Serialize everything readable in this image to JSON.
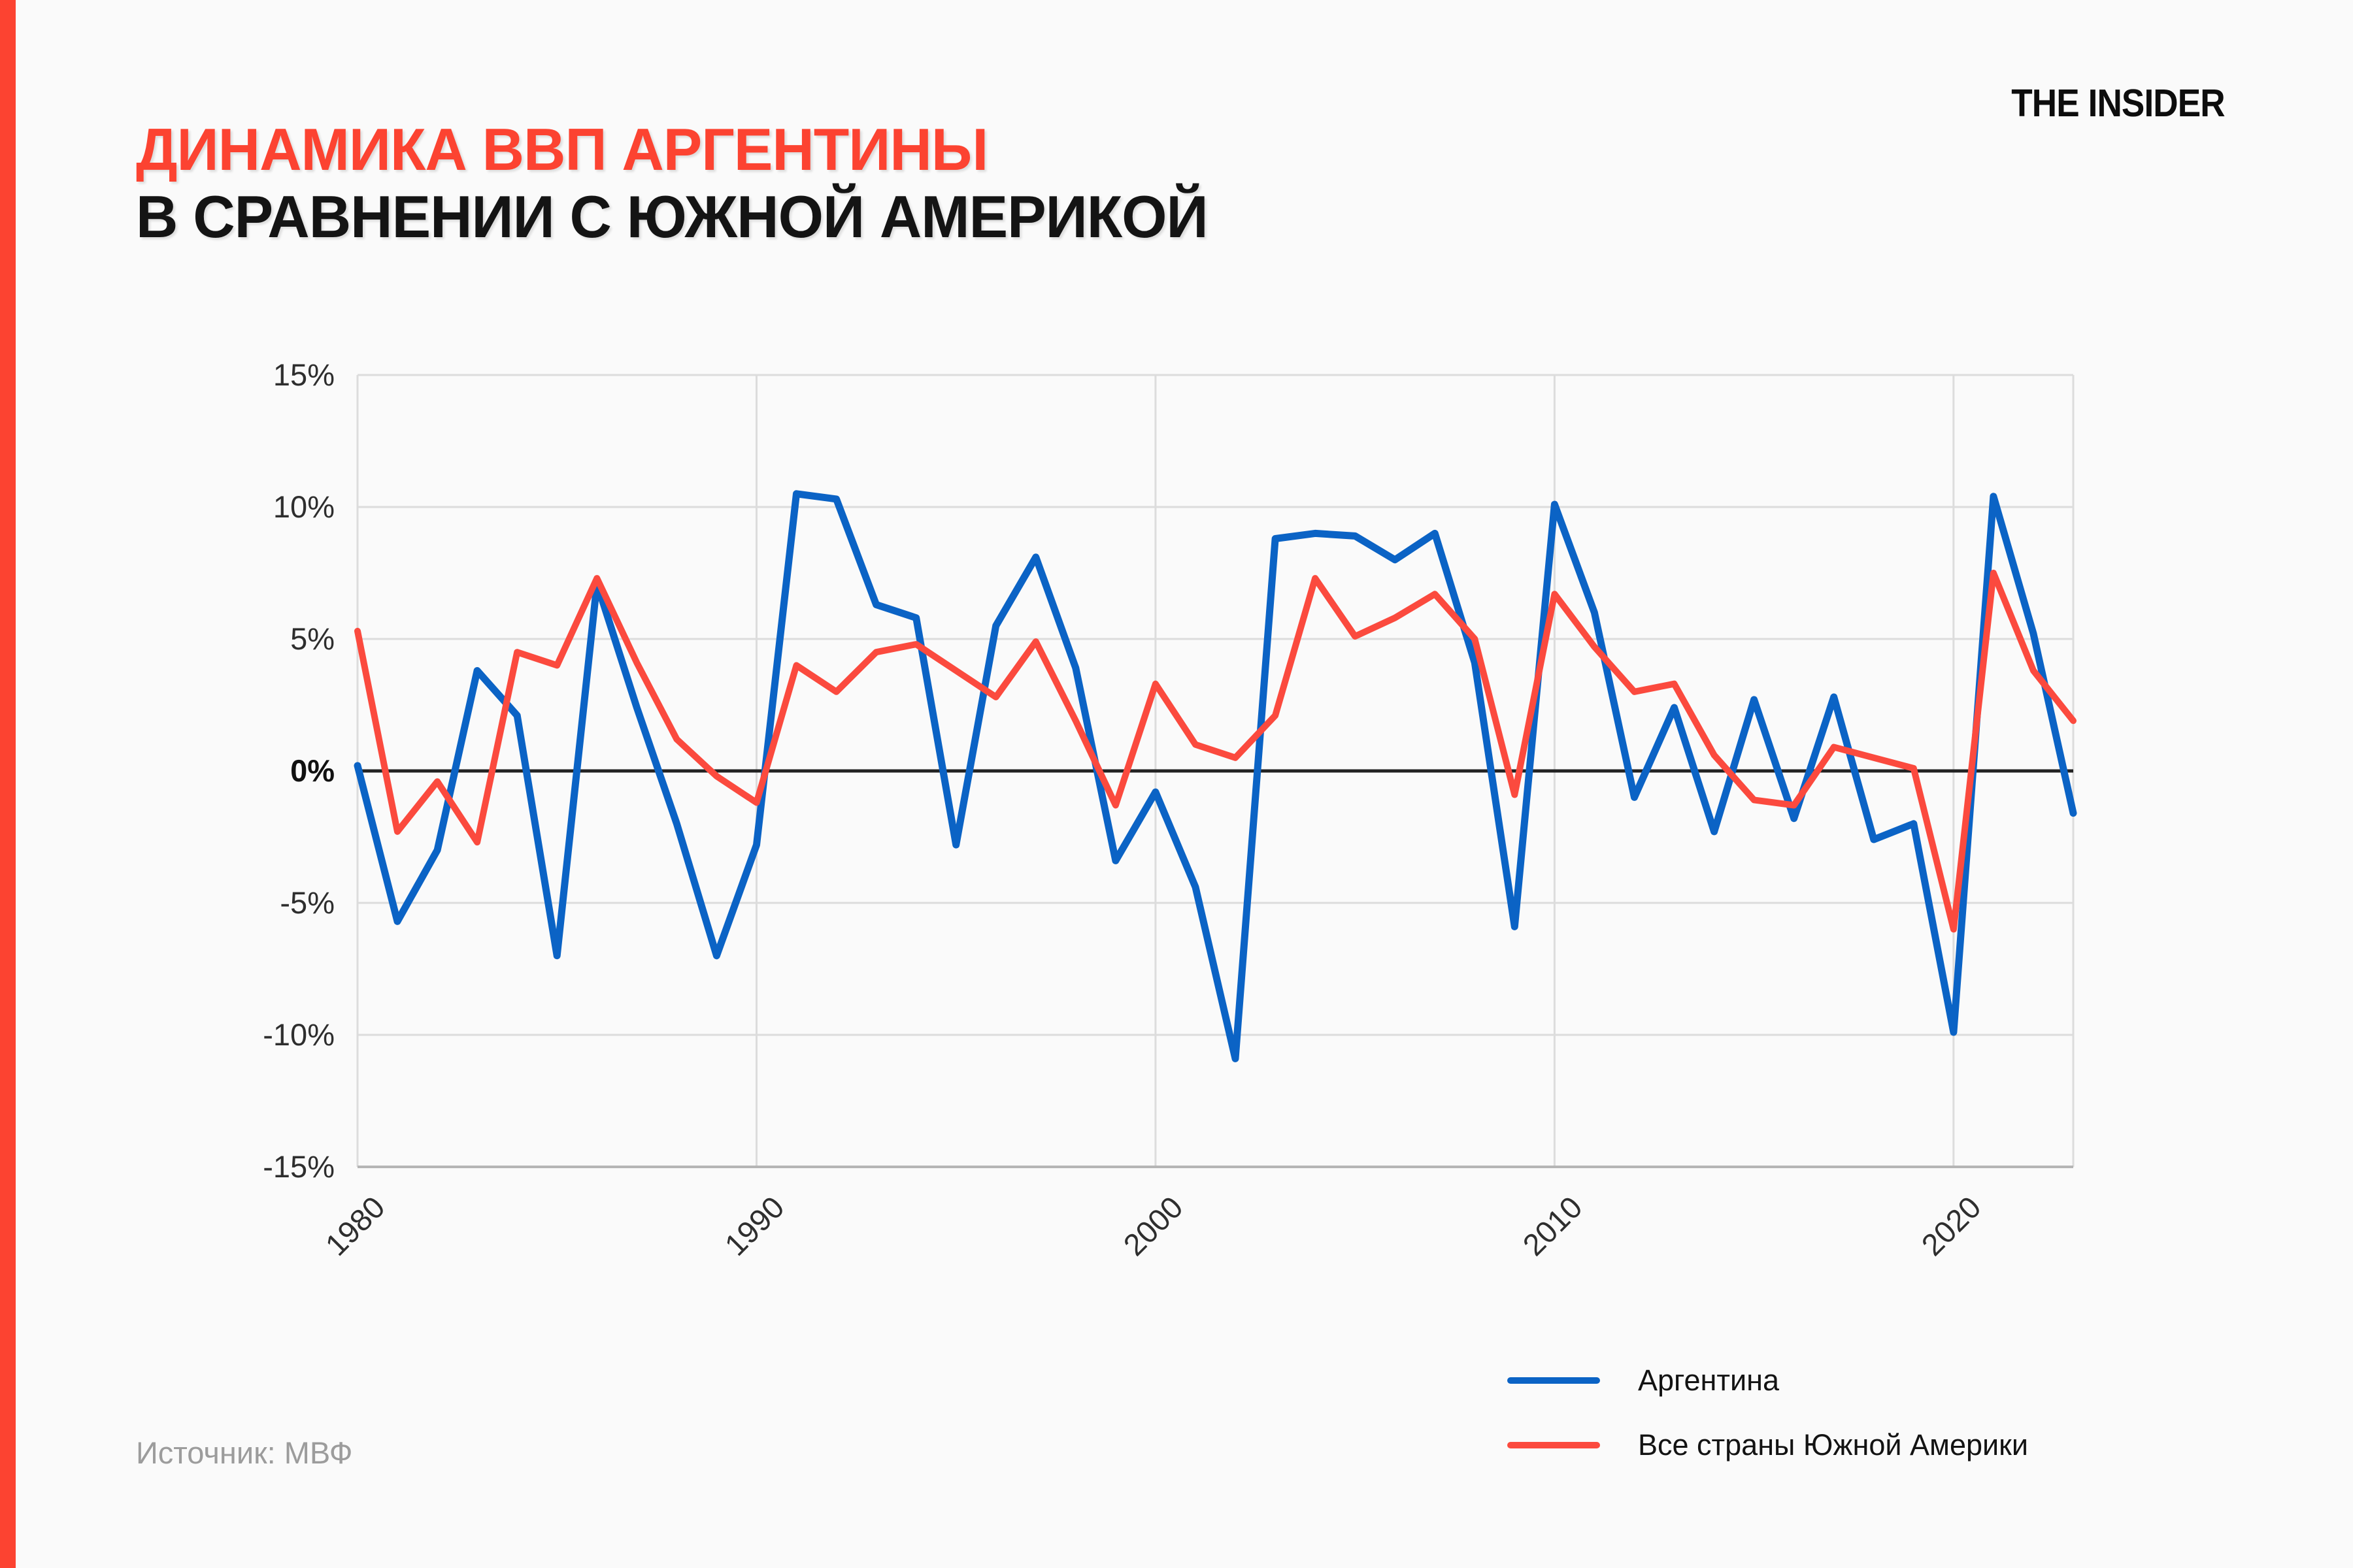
{
  "page": {
    "background": "#fafafa",
    "accent_color": "#fc4331"
  },
  "logo": {
    "text": "THE INSIDER"
  },
  "header": {
    "title_line1": "ДИНАМИКА ВВП АРГЕНТИНЫ",
    "title_line2": "В СРАВНЕНИИ С ЮЖНОЙ АМЕРИКОЙ",
    "title_line1_color": "#fc4331",
    "title_line2_color": "#141414"
  },
  "source": {
    "label": "Источник: МВФ"
  },
  "chart_data": {
    "type": "line",
    "title": "Динамика ВВП Аргентины в сравнении с Южной Америкой",
    "xlabel": "",
    "ylabel": "",
    "ylim": [
      -15,
      15
    ],
    "yticks": [
      15,
      10,
      5,
      0,
      -5,
      -10,
      -15
    ],
    "ytick_suffix": "%",
    "xticks": [
      1980,
      1990,
      2000,
      2010,
      2020
    ],
    "grid": true,
    "zero_line": true,
    "legend_position": "bottom-right",
    "x": [
      1980,
      1981,
      1982,
      1983,
      1984,
      1985,
      1986,
      1987,
      1988,
      1989,
      1990,
      1991,
      1992,
      1993,
      1994,
      1995,
      1996,
      1997,
      1998,
      1999,
      2000,
      2001,
      2002,
      2003,
      2004,
      2005,
      2006,
      2007,
      2008,
      2009,
      2010,
      2011,
      2012,
      2013,
      2014,
      2015,
      2016,
      2017,
      2018,
      2019,
      2020,
      2021,
      2022,
      2023
    ],
    "series": [
      {
        "name": "Аргентина",
        "color": "#0b63c5",
        "values": [
          0.2,
          -5.7,
          -3.0,
          3.8,
          2.1,
          -7.0,
          7.1,
          2.4,
          -2.0,
          -7.0,
          -2.8,
          10.5,
          10.3,
          6.3,
          5.8,
          -2.8,
          5.5,
          8.1,
          3.9,
          -3.4,
          -0.8,
          -4.4,
          -10.9,
          8.8,
          9.0,
          8.9,
          8.0,
          9.0,
          4.1,
          -5.9,
          10.1,
          6.0,
          -1.0,
          2.4,
          -2.3,
          2.7,
          -1.8,
          2.8,
          -2.6,
          -2.0,
          -9.9,
          10.4,
          5.2,
          -1.6
        ]
      },
      {
        "name": "Все страны Южной Америки",
        "color": "#fb4a3e",
        "values": [
          5.3,
          -2.3,
          -0.4,
          -2.7,
          4.5,
          4.0,
          7.3,
          4.1,
          1.2,
          -0.2,
          -1.2,
          4.0,
          3.0,
          4.5,
          4.8,
          3.8,
          2.8,
          4.9,
          1.9,
          -1.3,
          3.3,
          1.0,
          0.5,
          2.1,
          7.3,
          5.1,
          5.8,
          6.7,
          5.0,
          -0.9,
          6.7,
          4.7,
          3.0,
          3.3,
          0.6,
          -1.1,
          -1.3,
          0.9,
          0.5,
          0.1,
          -6.0,
          7.5,
          3.8,
          1.9
        ]
      }
    ]
  }
}
